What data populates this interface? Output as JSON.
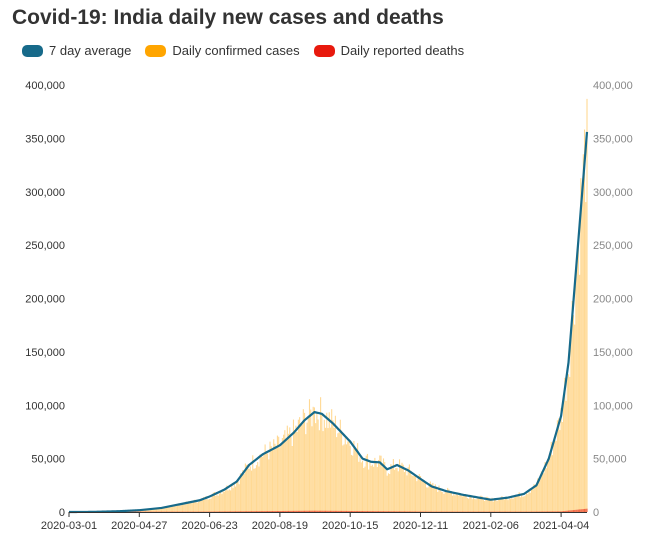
{
  "title": "Covid-19: India daily new cases and deaths",
  "legend": [
    {
      "label": "7 day average",
      "color": "#176a8a"
    },
    {
      "label": "Daily confirmed cases",
      "color": "#ffa500"
    },
    {
      "label": "Daily reported deaths",
      "color": "#e8190d"
    }
  ],
  "chart_data": {
    "type": "bar",
    "title": "Covid-19: India daily new cases and deaths",
    "xlabel": "",
    "ylabel": "",
    "ylim": [
      0,
      400000
    ],
    "yticks": [
      "0",
      "50,000",
      "100,000",
      "150,000",
      "200,000",
      "250,000",
      "300,000",
      "350,000",
      "400,000"
    ],
    "ytick_values": [
      0,
      50000,
      100000,
      150000,
      200000,
      250000,
      300000,
      350000,
      400000
    ],
    "xticks": [
      "2020-03-01",
      "2020-04-27",
      "2020-06-23",
      "2020-08-19",
      "2020-10-15",
      "2020-12-11",
      "2021-02-06",
      "2021-04-04"
    ],
    "x_start": "2020-03-01",
    "x_end": "2021-04-25",
    "grid": false,
    "legend_position": "top-left",
    "series": [
      {
        "name": "7 day average",
        "type": "line",
        "color": "#176a8a",
        "points": [
          [
            "2020-03-01",
            0
          ],
          [
            "2020-03-20",
            100
          ],
          [
            "2020-04-10",
            700
          ],
          [
            "2020-04-27",
            1700
          ],
          [
            "2020-05-15",
            3800
          ],
          [
            "2020-05-31",
            7500
          ],
          [
            "2020-06-15",
            11000
          ],
          [
            "2020-06-23",
            14500
          ],
          [
            "2020-07-05",
            21000
          ],
          [
            "2020-07-15",
            28500
          ],
          [
            "2020-07-25",
            44000
          ],
          [
            "2020-08-05",
            54000
          ],
          [
            "2020-08-19",
            62500
          ],
          [
            "2020-08-30",
            74000
          ],
          [
            "2020-09-08",
            86000
          ],
          [
            "2020-09-16",
            93600
          ],
          [
            "2020-09-22",
            92000
          ],
          [
            "2020-10-01",
            83000
          ],
          [
            "2020-10-15",
            66000
          ],
          [
            "2020-10-25",
            50000
          ],
          [
            "2020-11-01",
            47000
          ],
          [
            "2020-11-08",
            46500
          ],
          [
            "2020-11-14",
            40000
          ],
          [
            "2020-11-22",
            44000
          ],
          [
            "2020-12-01",
            39000
          ],
          [
            "2020-12-11",
            31000
          ],
          [
            "2020-12-20",
            24000
          ],
          [
            "2021-01-01",
            19500
          ],
          [
            "2021-01-15",
            16000
          ],
          [
            "2021-02-06",
            11500
          ],
          [
            "2021-02-20",
            13500
          ],
          [
            "2021-03-05",
            17000
          ],
          [
            "2021-03-15",
            25000
          ],
          [
            "2021-03-25",
            50000
          ],
          [
            "2021-04-04",
            90000
          ],
          [
            "2021-04-10",
            140000
          ],
          [
            "2021-04-17",
            240000
          ],
          [
            "2021-04-25",
            356000
          ]
        ]
      },
      {
        "name": "Daily confirmed cases",
        "type": "bar",
        "color": "#ffa500",
        "note": "daily values around the 7 day average; peaks ~98,000 (2020-09-16) and ~387,000 (2021-04-25)",
        "peak_values": [
          [
            "2020-09-16",
            98000
          ],
          [
            "2021-04-25",
            387000
          ]
        ]
      },
      {
        "name": "Daily reported deaths",
        "type": "bar",
        "color": "#e8190d",
        "points": [
          [
            "2020-03-01",
            0
          ],
          [
            "2020-06-23",
            400
          ],
          [
            "2020-09-16",
            1200
          ],
          [
            "2020-12-11",
            450
          ],
          [
            "2021-02-06",
            100
          ],
          [
            "2021-04-04",
            600
          ],
          [
            "2021-04-25",
            3100
          ]
        ]
      }
    ]
  }
}
